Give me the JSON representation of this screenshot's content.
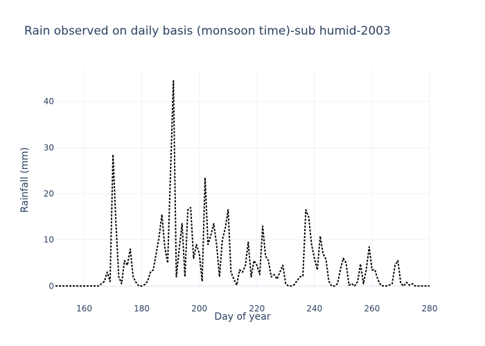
{
  "chart_data": {
    "type": "line",
    "title": "Rain observed on daily basis (monsoon time)-sub humid-2003",
    "xlabel": "Day of year",
    "ylabel": "Rainfall (mm)",
    "xlim": [
      150,
      280
    ],
    "ylim": [
      -1,
      47
    ],
    "xticks": [
      160,
      180,
      200,
      220,
      240,
      260,
      280
    ],
    "yticks": [
      0,
      10,
      20,
      30,
      40
    ],
    "grid": true,
    "legend": "none",
    "line_color": "#000000",
    "line_style": "dotted",
    "x": [
      150,
      151,
      152,
      153,
      154,
      155,
      156,
      157,
      158,
      159,
      160,
      161,
      162,
      163,
      164,
      165,
      166,
      167,
      168,
      169,
      170,
      171,
      172,
      173,
      174,
      175,
      176,
      177,
      178,
      179,
      180,
      181,
      182,
      183,
      184,
      185,
      186,
      187,
      188,
      189,
      190,
      191,
      192,
      193,
      194,
      195,
      196,
      197,
      198,
      199,
      200,
      201,
      202,
      203,
      204,
      205,
      206,
      207,
      208,
      209,
      210,
      211,
      212,
      213,
      214,
      215,
      216,
      217,
      218,
      219,
      220,
      221,
      222,
      223,
      224,
      225,
      226,
      227,
      228,
      229,
      230,
      231,
      232,
      233,
      234,
      235,
      236,
      237,
      238,
      239,
      240,
      241,
      242,
      243,
      244,
      245,
      246,
      247,
      248,
      249,
      250,
      251,
      252,
      253,
      254,
      255,
      256,
      257,
      258,
      259,
      260,
      261,
      262,
      263,
      264,
      265,
      266,
      267,
      268,
      269,
      270,
      271,
      272,
      273,
      274,
      275,
      276,
      277,
      278,
      279,
      280
    ],
    "y": [
      0,
      0,
      0,
      0,
      0,
      0,
      0,
      0,
      0,
      0,
      0,
      0,
      0,
      0,
      0,
      0,
      0.5,
      1,
      3,
      1,
      28.5,
      14,
      2,
      0.5,
      5.5,
      4.5,
      8,
      2,
      0.8,
      0,
      0,
      0.3,
      1,
      3,
      3.5,
      7,
      10.5,
      15.5,
      8.5,
      5,
      25,
      44.5,
      2,
      8,
      13.5,
      2,
      16.5,
      17,
      6,
      9,
      7,
      1,
      23.5,
      9,
      11,
      13.5,
      9,
      2,
      10,
      12.5,
      16.5,
      3,
      1.5,
      0.2,
      3.5,
      3,
      4.5,
      9.5,
      2,
      5.5,
      4.5,
      2.5,
      13,
      6.5,
      5.5,
      2,
      2.5,
      1.5,
      3,
      4.5,
      0.5,
      0,
      0,
      0.3,
      1.2,
      2,
      2.2,
      16.5,
      15,
      9,
      6,
      3.5,
      10.8,
      7,
      5.8,
      1,
      0,
      0,
      0.5,
      3.5,
      6,
      5,
      0.2,
      0.5,
      0,
      1,
      4.8,
      0.5,
      3.5,
      8.5,
      3.5,
      3.5,
      1.5,
      0.2,
      0,
      0,
      0.2,
      0.5,
      4.5,
      5.5,
      0.5,
      0,
      0.8,
      0.2,
      0.5,
      0,
      0,
      0,
      0,
      0,
      0
    ]
  }
}
